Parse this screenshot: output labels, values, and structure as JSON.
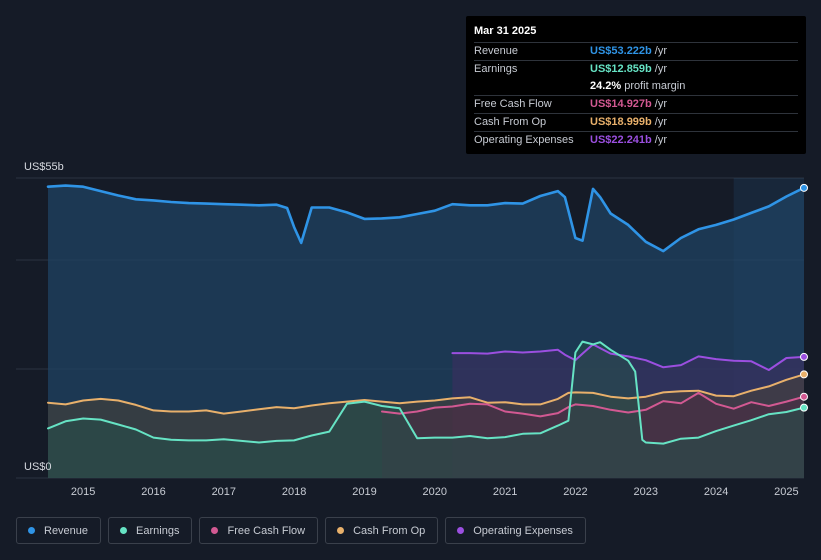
{
  "chart_data": {
    "type": "area",
    "y_axis": {
      "top_label": "US$55b",
      "bottom_label": "US$0",
      "ylim": [
        0,
        55
      ]
    },
    "x_ticks": [
      "2015",
      "2016",
      "2017",
      "2018",
      "2019",
      "2020",
      "2021",
      "2022",
      "2023",
      "2024",
      "2025"
    ],
    "xlim": [
      2014.5,
      2025.25
    ],
    "forecast_start": 2024.25,
    "series": [
      {
        "name": "Revenue",
        "color": "#2f94e6",
        "fill": "#1f4363",
        "points": [
          [
            2014.5,
            53.4
          ],
          [
            2014.75,
            53.6
          ],
          [
            2015,
            53.4
          ],
          [
            2015.25,
            52.6
          ],
          [
            2015.5,
            51.8
          ],
          [
            2015.75,
            51.1
          ],
          [
            2016,
            50.9
          ],
          [
            2016.25,
            50.6
          ],
          [
            2016.5,
            50.4
          ],
          [
            2016.75,
            50.3
          ],
          [
            2017,
            50.2
          ],
          [
            2017.25,
            50.1
          ],
          [
            2017.5,
            50.0
          ],
          [
            2017.75,
            50.1
          ],
          [
            2017.9,
            49.5
          ],
          [
            2018,
            46.0
          ],
          [
            2018.1,
            43.1
          ],
          [
            2018.25,
            49.6
          ],
          [
            2018.5,
            49.6
          ],
          [
            2018.75,
            48.7
          ],
          [
            2019,
            47.5
          ],
          [
            2019.25,
            47.6
          ],
          [
            2019.5,
            47.8
          ],
          [
            2019.75,
            48.4
          ],
          [
            2020,
            49.0
          ],
          [
            2020.25,
            50.2
          ],
          [
            2020.5,
            50.0
          ],
          [
            2020.75,
            50.0
          ],
          [
            2021,
            50.4
          ],
          [
            2021.25,
            50.3
          ],
          [
            2021.5,
            51.7
          ],
          [
            2021.75,
            52.6
          ],
          [
            2021.85,
            51.5
          ],
          [
            2022,
            44.0
          ],
          [
            2022.1,
            43.5
          ],
          [
            2022.25,
            53.0
          ],
          [
            2022.35,
            51.5
          ],
          [
            2022.5,
            48.5
          ],
          [
            2022.75,
            46.4
          ],
          [
            2023,
            43.3
          ],
          [
            2023.25,
            41.6
          ],
          [
            2023.5,
            44.0
          ],
          [
            2023.75,
            45.6
          ],
          [
            2024,
            46.4
          ],
          [
            2024.25,
            47.4
          ],
          [
            2024.5,
            48.6
          ],
          [
            2024.75,
            49.8
          ],
          [
            2025,
            51.6
          ],
          [
            2025.25,
            53.2
          ]
        ]
      },
      {
        "name": "Earnings",
        "color": "#66e3c4",
        "fill": "#24504a",
        "points": [
          [
            2014.5,
            9.1
          ],
          [
            2014.75,
            10.4
          ],
          [
            2015,
            10.9
          ],
          [
            2015.25,
            10.7
          ],
          [
            2015.5,
            9.8
          ],
          [
            2015.75,
            8.9
          ],
          [
            2016,
            7.4
          ],
          [
            2016.25,
            7.0
          ],
          [
            2016.5,
            6.9
          ],
          [
            2016.75,
            6.9
          ],
          [
            2017,
            7.1
          ],
          [
            2017.25,
            6.8
          ],
          [
            2017.5,
            6.5
          ],
          [
            2017.75,
            6.8
          ],
          [
            2018,
            6.9
          ],
          [
            2018.25,
            7.8
          ],
          [
            2018.5,
            8.5
          ],
          [
            2018.75,
            13.6
          ],
          [
            2019,
            14.0
          ],
          [
            2019.25,
            13.2
          ],
          [
            2019.5,
            12.8
          ],
          [
            2019.75,
            7.3
          ],
          [
            2020,
            7.4
          ],
          [
            2020.25,
            7.4
          ],
          [
            2020.5,
            7.7
          ],
          [
            2020.75,
            7.3
          ],
          [
            2021,
            7.5
          ],
          [
            2021.25,
            8.1
          ],
          [
            2021.5,
            8.2
          ],
          [
            2021.75,
            9.6
          ],
          [
            2021.9,
            10.5
          ],
          [
            2022,
            23.0
          ],
          [
            2022.1,
            25.0
          ],
          [
            2022.25,
            24.5
          ],
          [
            2022.35,
            24.9
          ],
          [
            2022.5,
            23.5
          ],
          [
            2022.75,
            21.5
          ],
          [
            2022.85,
            19.5
          ],
          [
            2022.95,
            7.0
          ],
          [
            2023,
            6.5
          ],
          [
            2023.25,
            6.3
          ],
          [
            2023.5,
            7.2
          ],
          [
            2023.75,
            7.4
          ],
          [
            2024,
            8.6
          ],
          [
            2024.25,
            9.6
          ],
          [
            2024.5,
            10.6
          ],
          [
            2024.75,
            11.7
          ],
          [
            2025,
            12.1
          ],
          [
            2025.25,
            12.9
          ]
        ]
      },
      {
        "name": "Free Cash Flow",
        "color": "#d25992",
        "fill": "#4a2c44",
        "points": [
          [
            2019.25,
            12.2
          ],
          [
            2019.5,
            11.8
          ],
          [
            2019.75,
            12.2
          ],
          [
            2020,
            12.9
          ],
          [
            2020.25,
            13.1
          ],
          [
            2020.5,
            13.6
          ],
          [
            2020.75,
            13.5
          ],
          [
            2021,
            12.2
          ],
          [
            2021.25,
            11.8
          ],
          [
            2021.5,
            11.3
          ],
          [
            2021.75,
            11.9
          ],
          [
            2021.9,
            13.0
          ],
          [
            2022,
            13.5
          ],
          [
            2022.25,
            13.2
          ],
          [
            2022.5,
            12.5
          ],
          [
            2022.75,
            12.0
          ],
          [
            2023,
            12.5
          ],
          [
            2023.25,
            14.1
          ],
          [
            2023.5,
            13.7
          ],
          [
            2023.75,
            15.6
          ],
          [
            2024,
            13.6
          ],
          [
            2024.25,
            12.7
          ],
          [
            2024.5,
            13.9
          ],
          [
            2024.75,
            13.2
          ],
          [
            2025,
            14.0
          ],
          [
            2025.25,
            14.9
          ]
        ]
      },
      {
        "name": "Cash From Op",
        "color": "#e8b06b",
        "fill": "#4a4136",
        "points": [
          [
            2014.5,
            13.8
          ],
          [
            2014.75,
            13.5
          ],
          [
            2015,
            14.2
          ],
          [
            2015.25,
            14.5
          ],
          [
            2015.5,
            14.2
          ],
          [
            2015.75,
            13.4
          ],
          [
            2016,
            12.4
          ],
          [
            2016.25,
            12.2
          ],
          [
            2016.5,
            12.2
          ],
          [
            2016.75,
            12.4
          ],
          [
            2017,
            11.8
          ],
          [
            2017.25,
            12.2
          ],
          [
            2017.5,
            12.6
          ],
          [
            2017.75,
            13.0
          ],
          [
            2018,
            12.8
          ],
          [
            2018.25,
            13.3
          ],
          [
            2018.5,
            13.7
          ],
          [
            2018.75,
            14.0
          ],
          [
            2019,
            14.3
          ],
          [
            2019.25,
            14.0
          ],
          [
            2019.5,
            13.7
          ],
          [
            2019.75,
            14.0
          ],
          [
            2020,
            14.2
          ],
          [
            2020.25,
            14.6
          ],
          [
            2020.5,
            14.8
          ],
          [
            2020.75,
            13.8
          ],
          [
            2021,
            13.9
          ],
          [
            2021.25,
            13.5
          ],
          [
            2021.5,
            13.5
          ],
          [
            2021.75,
            14.5
          ],
          [
            2021.9,
            15.6
          ],
          [
            2022,
            15.7
          ],
          [
            2022.25,
            15.6
          ],
          [
            2022.5,
            14.9
          ],
          [
            2022.75,
            14.6
          ],
          [
            2023,
            14.9
          ],
          [
            2023.25,
            15.7
          ],
          [
            2023.5,
            15.9
          ],
          [
            2023.75,
            16.0
          ],
          [
            2024,
            15.1
          ],
          [
            2024.25,
            15.0
          ],
          [
            2024.5,
            16.0
          ],
          [
            2024.75,
            16.8
          ],
          [
            2025,
            18.0
          ],
          [
            2025.25,
            19.0
          ]
        ]
      },
      {
        "name": "Operating Expenses",
        "color": "#9b4fe0",
        "fill": "#3f2e62",
        "points": [
          [
            2020.25,
            22.9
          ],
          [
            2020.5,
            22.9
          ],
          [
            2020.75,
            22.8
          ],
          [
            2021,
            23.2
          ],
          [
            2021.25,
            23.0
          ],
          [
            2021.5,
            23.2
          ],
          [
            2021.75,
            23.5
          ],
          [
            2021.85,
            22.6
          ],
          [
            2022,
            21.6
          ],
          [
            2022.1,
            22.8
          ],
          [
            2022.25,
            24.5
          ],
          [
            2022.5,
            22.8
          ],
          [
            2022.75,
            22.3
          ],
          [
            2023,
            21.6
          ],
          [
            2023.25,
            20.3
          ],
          [
            2023.5,
            20.7
          ],
          [
            2023.75,
            22.3
          ],
          [
            2024,
            21.8
          ],
          [
            2024.25,
            21.5
          ],
          [
            2024.5,
            21.4
          ],
          [
            2024.75,
            19.8
          ],
          [
            2025,
            22.0
          ],
          [
            2025.25,
            22.2
          ]
        ]
      }
    ]
  },
  "tooltip": {
    "date": "Mar 31 2025",
    "rows": [
      {
        "name": "Revenue",
        "value": "US$53.222b",
        "unit": "/yr",
        "color": "#2f94e6"
      },
      {
        "name": "Earnings",
        "value": "US$12.859b",
        "unit": "/yr",
        "color": "#66e3c4"
      },
      {
        "name": "",
        "value": "24.2%",
        "unit": "profit margin",
        "color": "#ffffff"
      },
      {
        "name": "Free Cash Flow",
        "value": "US$14.927b",
        "unit": "/yr",
        "color": "#d25992"
      },
      {
        "name": "Cash From Op",
        "value": "US$18.999b",
        "unit": "/yr",
        "color": "#e8b06b"
      },
      {
        "name": "Operating Expenses",
        "value": "US$22.241b",
        "unit": "/yr",
        "color": "#9b4fe0"
      }
    ]
  },
  "legend": [
    {
      "label": "Revenue",
      "color": "#2f94e6"
    },
    {
      "label": "Earnings",
      "color": "#66e3c4"
    },
    {
      "label": "Free Cash Flow",
      "color": "#d25992"
    },
    {
      "label": "Cash From Op",
      "color": "#e8b06b"
    },
    {
      "label": "Operating Expenses",
      "color": "#9b4fe0"
    }
  ]
}
